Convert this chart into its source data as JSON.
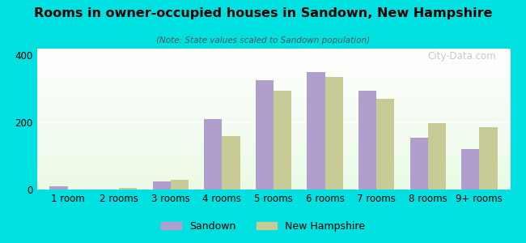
{
  "title": "Rooms in owner-occupied houses in Sandown, New Hampshire",
  "subtitle": "(Note: State values scaled to Sandown population)",
  "categories": [
    "1 room",
    "2 rooms",
    "3 rooms",
    "4 rooms",
    "5 rooms",
    "6 rooms",
    "7 rooms",
    "8 rooms",
    "9+ rooms"
  ],
  "sandown_values": [
    10,
    0,
    25,
    210,
    325,
    350,
    295,
    155,
    120
  ],
  "nh_values": [
    0,
    5,
    30,
    160,
    295,
    335,
    270,
    197,
    185
  ],
  "sandown_color": "#b09fcc",
  "nh_color": "#c8cb96",
  "background_color": "#00e0e0",
  "ylim": [
    0,
    420
  ],
  "yticks": [
    0,
    200,
    400
  ],
  "bar_width": 0.35,
  "legend_labels": [
    "Sandown",
    "New Hampshire"
  ],
  "watermark": "City-Data.com"
}
